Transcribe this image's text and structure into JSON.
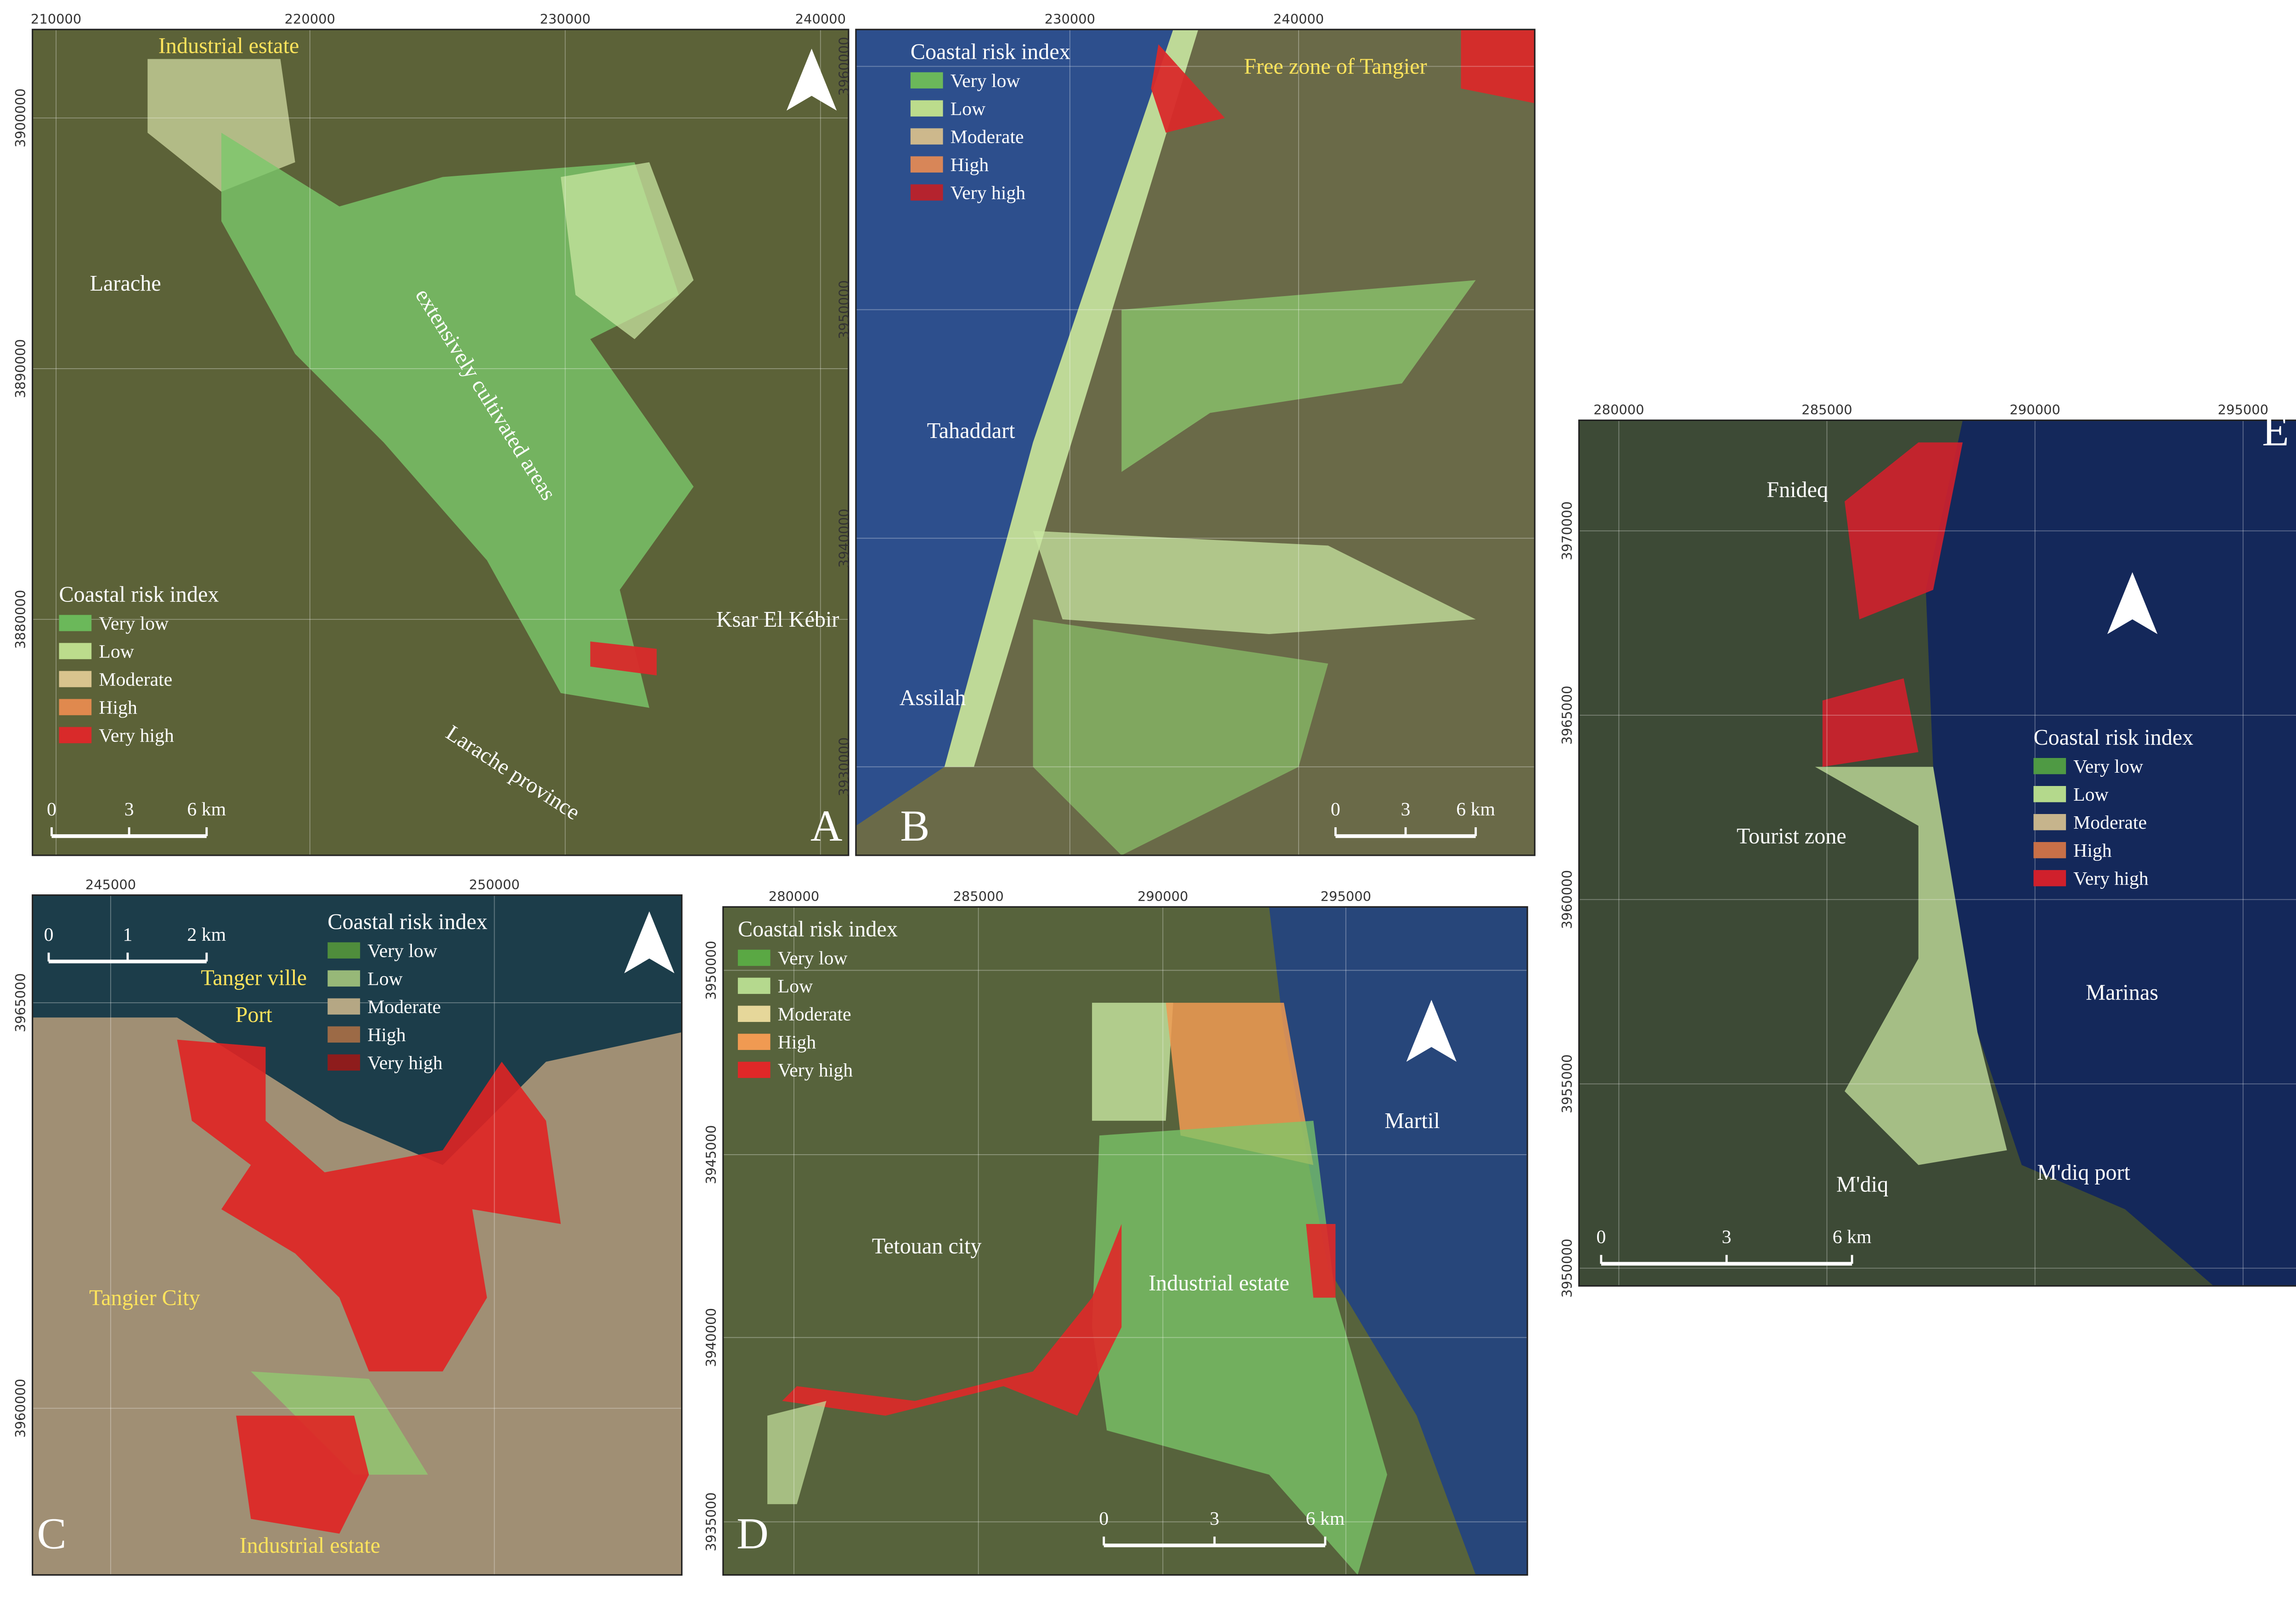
{
  "panels": [
    {
      "letter": "A",
      "x_ticks": [
        210000,
        220000,
        230000,
        240000
      ],
      "y_ticks": [
        3900000,
        3890000,
        3880000
      ],
      "legend": {
        "title": "Coastal risk index",
        "items": [
          {
            "label": "Very low",
            "color": "#6bb85a"
          },
          {
            "label": "Low",
            "color": "#bcdc8c"
          },
          {
            "label": "Moderate",
            "color": "#d9c48e"
          },
          {
            "label": "High",
            "color": "#e0894e"
          },
          {
            "label": "Very high",
            "color": "#d92a2a"
          }
        ]
      },
      "scale_bar": [
        "0",
        "3",
        "6 km"
      ],
      "labels": [
        "Industrial estate",
        "Larache",
        "extensively cultivated areas",
        "Ksar El Kébir",
        "Larache province"
      ]
    },
    {
      "letter": "B",
      "x_ticks": [
        230000,
        240000
      ],
      "y_ticks": [
        3960000,
        3950000,
        3940000,
        3930000
      ],
      "legend": {
        "title": "Coastal risk index",
        "items": [
          {
            "label": "Very low",
            "color": "#6bb85a"
          },
          {
            "label": "Low",
            "color": "#bcdc8c"
          },
          {
            "label": "Moderate",
            "color": "#cdb88c"
          },
          {
            "label": "High",
            "color": "#d88658"
          },
          {
            "label": "Very high",
            "color": "#b5232e"
          }
        ]
      },
      "scale_bar": [
        "0",
        "3",
        "6 km"
      ],
      "labels": [
        "Free zone of Tangier",
        "Tahaddart",
        "Assilah"
      ]
    },
    {
      "letter": "C",
      "x_ticks": [
        245000,
        250000
      ],
      "y_ticks": [
        3965000,
        3960000
      ],
      "legend": {
        "title": "Coastal risk index",
        "items": [
          {
            "label": "Very low",
            "color": "#4f8d3c"
          },
          {
            "label": "Low",
            "color": "#97b878"
          },
          {
            "label": "Moderate",
            "color": "#b5a784"
          },
          {
            "label": "High",
            "color": "#9c6a46"
          },
          {
            "label": "Very high",
            "color": "#8e1c1c"
          }
        ]
      },
      "scale_bar": [
        "0",
        "1",
        "2 km"
      ],
      "labels": [
        "Tanger ville",
        "Port",
        "Tangier City",
        "Industrial estate"
      ]
    },
    {
      "letter": "D",
      "x_ticks": [
        280000,
        285000,
        290000,
        295000
      ],
      "y_ticks": [
        3950000,
        3945000,
        3940000,
        3935000
      ],
      "legend": {
        "title": "Coastal risk index",
        "items": [
          {
            "label": "Very low",
            "color": "#5aa844"
          },
          {
            "label": "Low",
            "color": "#b5d98e"
          },
          {
            "label": "Moderate",
            "color": "#e6d79a"
          },
          {
            "label": "High",
            "color": "#f09a52"
          },
          {
            "label": "Very high",
            "color": "#e02828"
          }
        ]
      },
      "scale_bar": [
        "0",
        "3",
        "6 km"
      ],
      "labels": [
        "Martil",
        "Tetouan city",
        "Industrial estate"
      ]
    },
    {
      "letter": "E",
      "x_ticks": [
        280000,
        285000,
        290000,
        295000
      ],
      "y_ticks": [
        3970000,
        3965000,
        3960000,
        3955000,
        3950000
      ],
      "legend": {
        "title": "Coastal risk index",
        "items": [
          {
            "label": "Very low",
            "color": "#4f9a44"
          },
          {
            "label": "Low",
            "color": "#b4d98c"
          },
          {
            "label": "Moderate",
            "color": "#c6b48c"
          },
          {
            "label": "High",
            "color": "#c87048"
          },
          {
            "label": "Very high",
            "color": "#d0202c"
          }
        ]
      },
      "scale_bar": [
        "0",
        "3",
        "6 km"
      ],
      "labels": [
        "Fnideq",
        "Tourist zone",
        "Marinas",
        "M'diq",
        "M'diq port"
      ]
    }
  ]
}
